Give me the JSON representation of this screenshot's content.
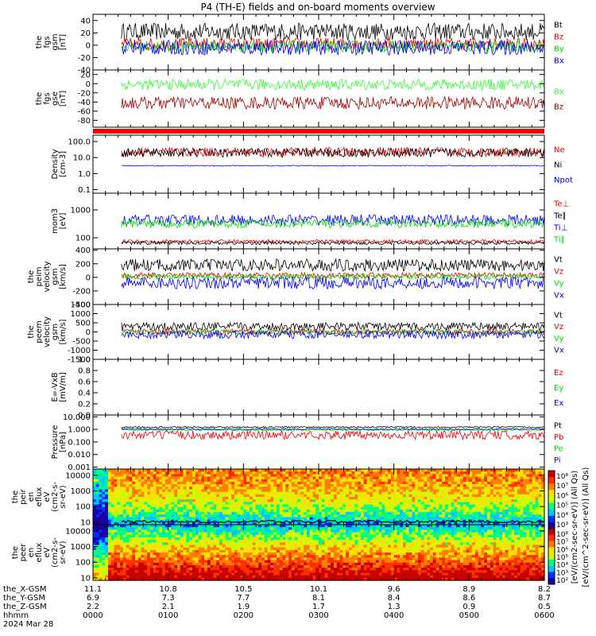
{
  "title": "P4 (TH-E) fields and on-board moments overview",
  "colors": {
    "black": "#000000",
    "red": "#ee0000",
    "green": "#00dd00",
    "blue": "#0000ee",
    "darkred": "#a00000",
    "bright_green": "#33ff33"
  },
  "chart_data": [
    {
      "type": "line",
      "ylabel": [
        "the",
        "fgs",
        "gsm",
        "[nT]"
      ],
      "yticks": [
        "40",
        "20",
        "0",
        "-20",
        "-40"
      ],
      "ylim": [
        -40,
        50
      ],
      "series": [
        {
          "name": "Bt",
          "color": "#000000",
          "level": 22,
          "amp": 14
        },
        {
          "name": "Bz",
          "color": "#ee0000",
          "level": 2,
          "amp": 10
        },
        {
          "name": "By",
          "color": "#00dd00",
          "level": -2,
          "amp": 9
        },
        {
          "name": "Bx",
          "color": "#0000ee",
          "level": -4,
          "amp": 12
        }
      ]
    },
    {
      "type": "line",
      "ylabel": [
        "the",
        "fgs",
        "gse",
        "[nT]"
      ],
      "yticks": [
        "20",
        "0",
        "-20",
        "-40",
        "-60",
        "-80"
      ],
      "ylim": [
        -95,
        30
      ],
      "series": [
        {
          "name": "Bx",
          "color": "#33ff33",
          "level": -2,
          "amp": 12
        },
        {
          "name": "Bz",
          "color": "#a00000",
          "level": -42,
          "amp": 14
        }
      ]
    },
    {
      "type": "line",
      "ylabel": [
        "Density",
        "[cm-3]"
      ],
      "yticks": [
        "100.0",
        "10.0",
        "1.0",
        "0.1"
      ],
      "ylim": [
        0.06,
        250
      ],
      "scale": "log",
      "series": [
        {
          "name": "Ne",
          "color": "#ee0000",
          "level": 22,
          "amp": 0.3
        },
        {
          "name": "Ni",
          "color": "#000000",
          "level": 20,
          "amp": 0.28
        },
        {
          "name": "Npot",
          "color": "#0000ee",
          "level": 3.1,
          "amp": 0.03
        }
      ]
    },
    {
      "type": "line",
      "ylabel": [
        "mom3",
        "[eV]"
      ],
      "yticks": [
        "1000",
        "100"
      ],
      "ylim": [
        40,
        4000
      ],
      "scale": "log",
      "series": [
        {
          "name": "Te⊥",
          "color": "#ee0000",
          "level": 75,
          "amp": 0.06
        },
        {
          "name": "Te∥",
          "color": "#000000",
          "level": 65,
          "amp": 0.06
        },
        {
          "name": "Ti⊥",
          "color": "#0000ee",
          "level": 430,
          "amp": 0.2
        },
        {
          "name": "Ti∥",
          "color": "#00dd00",
          "level": 320,
          "amp": 0.15
        }
      ]
    },
    {
      "type": "line",
      "ylabel": [
        "the",
        "peim",
        "velocity",
        "gsm",
        "[km/s]"
      ],
      "yticks": [
        "400",
        "200",
        "0",
        "-200",
        "-400"
      ],
      "ylim": [
        -400,
        420
      ],
      "series": [
        {
          "name": "Vt",
          "color": "#000000",
          "level": 180,
          "amp": 90
        },
        {
          "name": "Vz",
          "color": "#ee0000",
          "level": 30,
          "amp": 40
        },
        {
          "name": "Vy",
          "color": "#00dd00",
          "level": 10,
          "amp": 40
        },
        {
          "name": "Vx",
          "color": "#0000ee",
          "level": -80,
          "amp": 90
        }
      ]
    },
    {
      "type": "line",
      "ylabel": [
        "the",
        "peem",
        "velocity",
        "gsm",
        "[km/s]"
      ],
      "yticks": [
        "1500",
        "1000",
        "500",
        "0",
        "-500",
        "-1000",
        "-1500"
      ],
      "ylim": [
        -1500,
        1500
      ],
      "series": [
        {
          "name": "Vt",
          "color": "#000000",
          "level": 300,
          "amp": 220
        },
        {
          "name": "Vz",
          "color": "#ee0000",
          "level": 0,
          "amp": 150
        },
        {
          "name": "Vy",
          "color": "#00dd00",
          "level": 0,
          "amp": 120
        },
        {
          "name": "Vx",
          "color": "#0000ee",
          "level": -150,
          "amp": 220
        }
      ]
    },
    {
      "type": "line",
      "ylabel": [
        "E=-VxB",
        "[mV/m]"
      ],
      "yticks": [
        "1.0",
        "0.8",
        "0.6",
        "0.4",
        "0.2",
        "0.0"
      ],
      "ylim": [
        0,
        1
      ],
      "series": [
        {
          "name": "Ez",
          "color": "#ee0000"
        },
        {
          "name": "Ey",
          "color": "#00dd00"
        },
        {
          "name": "Ex",
          "color": "#0000ee"
        }
      ]
    },
    {
      "type": "line",
      "ylabel": [
        "Pressure",
        "[nPa]"
      ],
      "yticks": [
        "10.000",
        "1.000",
        "0.100",
        "0.010",
        "0.001"
      ],
      "ylim": [
        0.0007,
        14
      ],
      "scale": "log",
      "series": [
        {
          "name": "Pt",
          "color": "#000000",
          "level": 1.5,
          "amp": 0.06
        },
        {
          "name": "Pb",
          "color": "#ee0000",
          "level": 0.35,
          "amp": 0.35
        },
        {
          "name": "Pe",
          "color": "#00dd00",
          "level": 0.9,
          "amp": 0.08
        },
        {
          "name": "Pi",
          "color": "#0000ee",
          "level": 1.05,
          "amp": 0.06
        }
      ]
    },
    {
      "type": "heatmap",
      "ylabel": [
        "the",
        "peir",
        "en",
        "eflux",
        "eV",
        "(cm2-s-",
        "sr-eV)"
      ],
      "yticks": [
        "10000",
        "1000",
        "100",
        "10"
      ],
      "ylim": [
        7,
        25000
      ],
      "scale": "log"
    },
    {
      "type": "heatmap",
      "ylabel": [
        "the",
        "peer",
        "en",
        "eflux",
        "eV",
        "(cm2-s-",
        "sr-eV)"
      ],
      "yticks": [
        "10000",
        "1000",
        "100",
        "10"
      ],
      "ylim": [
        7,
        25000
      ],
      "scale": "log"
    }
  ],
  "colorbar": {
    "ticks": [
      "10⁸",
      "10⁷",
      "10⁶",
      "10⁵",
      "10⁴",
      "10³"
    ],
    "ticks2": [
      "10⁸",
      "10⁷",
      "10⁶",
      "10⁵",
      "10⁴",
      "10³",
      "10²"
    ],
    "label": "[eV/(cm2-sec-sr-eV)] (All Qs)",
    "label_alt": "[eV/(cm^2-sec-sr-eV)] (All Qs)"
  },
  "xaxis": {
    "row_labels": [
      "the_X-GSM",
      "the_Y-GSM",
      "the_Z-GSM",
      "hhmm",
      "2024 Mar 28"
    ],
    "columns": [
      [
        "11.1",
        "6.9",
        "2.2",
        "0000"
      ],
      [
        "10.8",
        "7.3",
        "2.1",
        "0100"
      ],
      [
        "10.5",
        "7.7",
        "1.9",
        "0200"
      ],
      [
        "10.1",
        "8.1",
        "1.7",
        "0300"
      ],
      [
        "9.6",
        "8.4",
        "1.3",
        "0400"
      ],
      [
        "8.9",
        "8.6",
        "0.9",
        "0500"
      ],
      [
        "8.2",
        "8.7",
        "0.5",
        "0600"
      ]
    ]
  }
}
